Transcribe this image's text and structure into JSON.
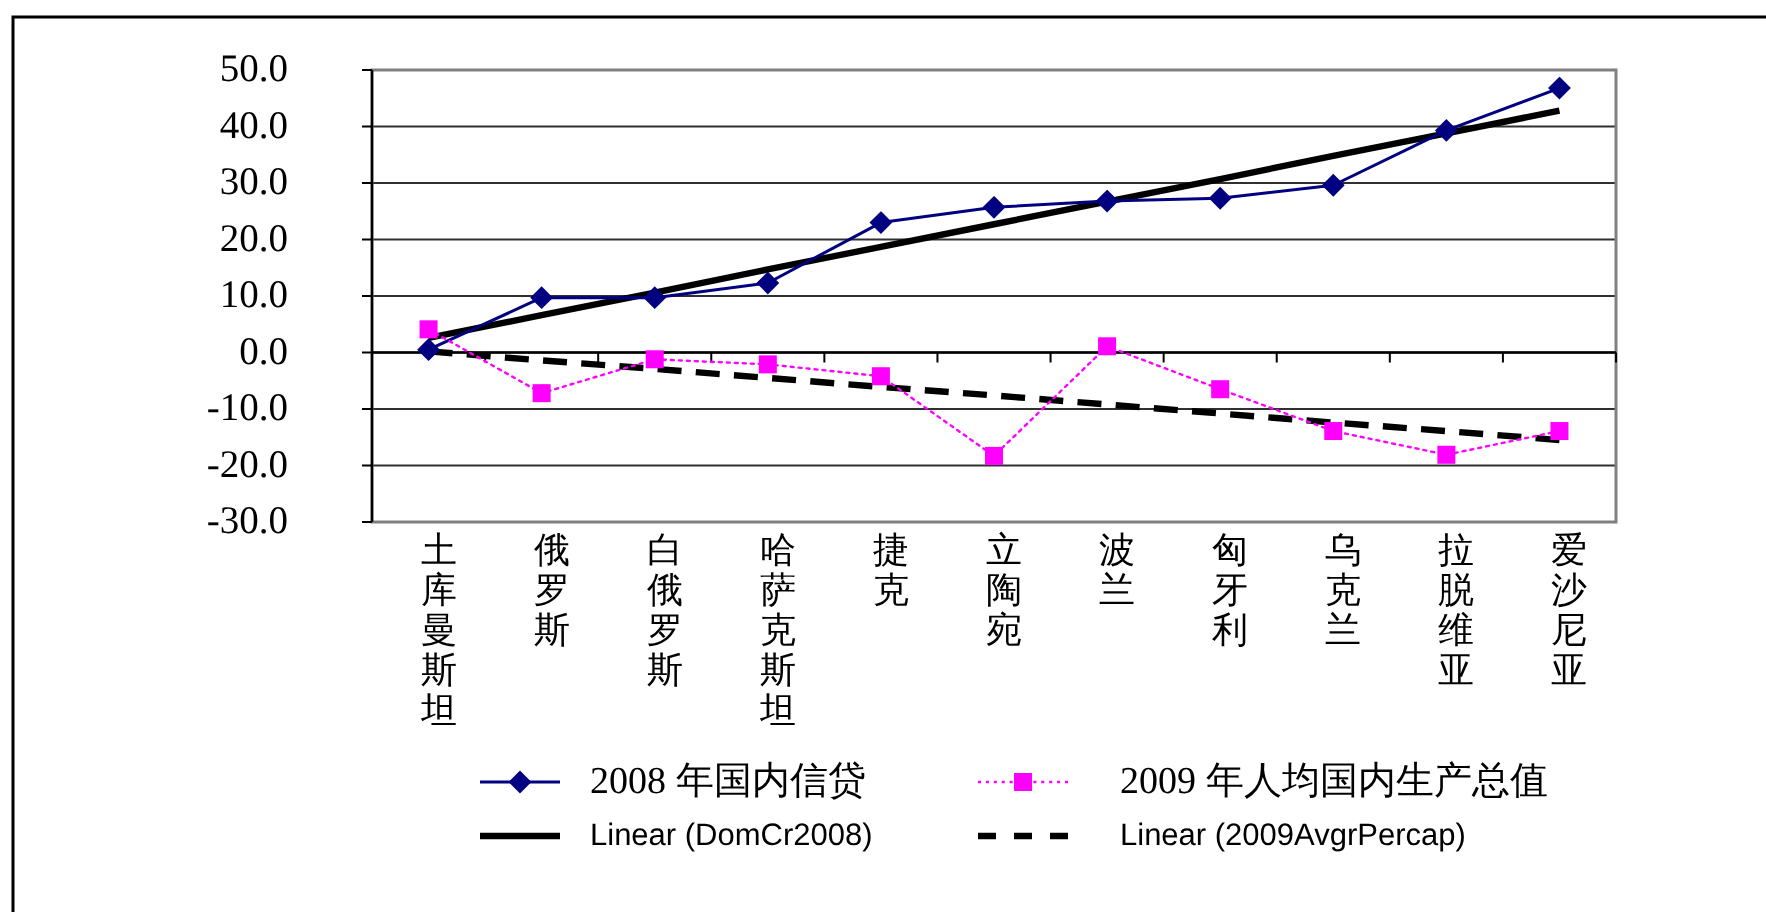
{
  "chart_data": {
    "type": "line",
    "categories": [
      "土库曼斯坦",
      "俄罗斯",
      "白俄罗斯",
      "哈萨克斯坦",
      "捷克",
      "立陶宛",
      "波兰",
      "匈牙利",
      "乌克兰",
      "拉脱维亚",
      "爱沙尼亚"
    ],
    "series": [
      {
        "name": "2008 年国内信贷",
        "color": "#000080",
        "marker": "diamond",
        "line_style": "solid",
        "values": [
          0.5,
          9.7,
          9.7,
          12.3,
          23.0,
          25.7,
          26.8,
          27.3,
          29.6,
          39.3,
          46.8
        ]
      },
      {
        "name": "2009 年人均国内生产总值",
        "color": "#ff00ff",
        "marker": "square",
        "line_style": "dotted",
        "values": [
          4.1,
          -7.2,
          -1.2,
          -2.1,
          -4.2,
          -18.3,
          1.1,
          -6.5,
          -13.9,
          -18.1,
          -13.9
        ]
      },
      {
        "name": "Linear (DomCr2008)",
        "color": "#000000",
        "marker": "none",
        "line_style": "solid",
        "values": [
          2.6,
          6.6,
          10.6,
          14.7,
          18.7,
          22.7,
          26.7,
          30.7,
          34.8,
          38.8,
          42.8
        ]
      },
      {
        "name": "Linear (2009AvgrPercap)",
        "color": "#000000",
        "marker": "none",
        "line_style": "dashed",
        "values": [
          0.2,
          -1.4,
          -2.9,
          -4.5,
          -6.1,
          -7.6,
          -9.2,
          -10.8,
          -12.4,
          -13.9,
          -15.5
        ]
      }
    ],
    "ylim": [
      -30,
      50
    ],
    "yticks": [
      {
        "value": 50,
        "label": "50.0"
      },
      {
        "value": 40,
        "label": "40.0"
      },
      {
        "value": 30,
        "label": "30.0"
      },
      {
        "value": 20,
        "label": "20.0"
      },
      {
        "value": 10,
        "label": "10.0"
      },
      {
        "value": 0,
        "label": "0.0"
      },
      {
        "value": -10,
        "label": "-10.0"
      },
      {
        "value": -20,
        "label": "-20.0"
      },
      {
        "value": -30,
        "label": "-30.0"
      }
    ],
    "grid": "y",
    "legend": "bottom"
  }
}
